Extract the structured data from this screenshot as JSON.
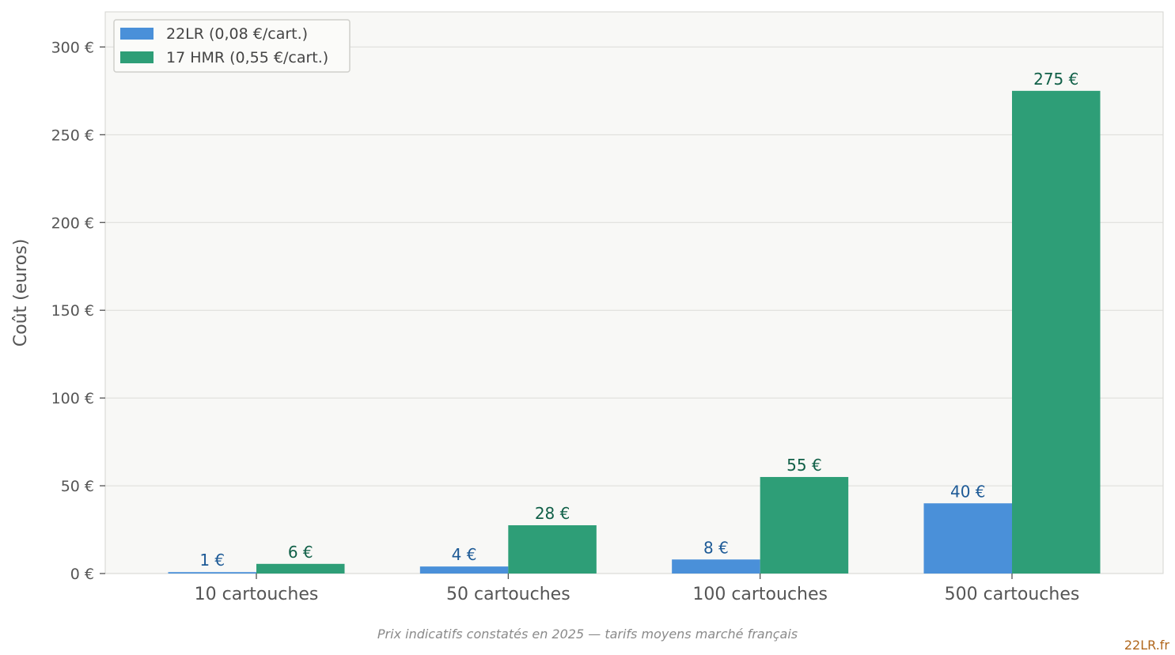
{
  "chart_data": {
    "type": "bar",
    "categories": [
      "10 cartouches",
      "50 cartouches",
      "100 cartouches",
      "500 cartouches"
    ],
    "series": [
      {
        "name": "22LR (0,08 €/cart.)",
        "values": [
          0.8,
          4,
          8,
          40
        ],
        "labels": [
          "1 €",
          "4 €",
          "8 €",
          "40 €"
        ],
        "color": "#4a90d9",
        "label_color": "#1d5a96"
      },
      {
        "name": "17 HMR (0,55 €/cart.)",
        "values": [
          5.5,
          27.5,
          55,
          275
        ],
        "labels": [
          "6 €",
          "28 €",
          "55 €",
          "275 €"
        ],
        "color": "#2e9e77",
        "label_color": "#116048"
      }
    ],
    "ylabel": "Coût (euros)",
    "xlabel": "",
    "ylim": [
      0,
      320
    ],
    "yticks": [
      0,
      50,
      100,
      150,
      200,
      250,
      300
    ],
    "ytick_labels": [
      "0 €",
      "50 €",
      "100 €",
      "150 €",
      "200 €",
      "250 €",
      "300 €"
    ],
    "grid": true,
    "legend_position": "top-left"
  },
  "footnote": "Prix indicatifs constatés en 2025 — tarifs moyens marché français",
  "brand": "22LR.fr"
}
